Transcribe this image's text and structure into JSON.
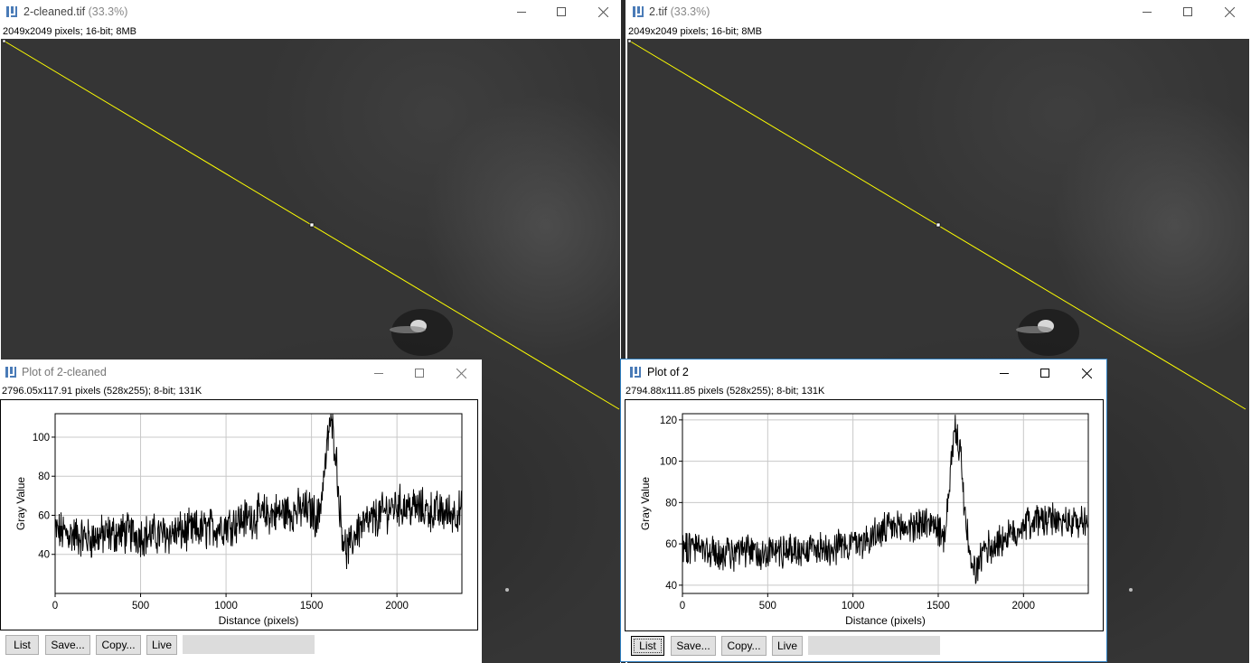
{
  "left_image_window": {
    "title": "2-cleaned.tif",
    "zoom": "(33.3%)",
    "info": "2049x2049 pixels; 16-bit; 8MB"
  },
  "right_image_window": {
    "title": "2.tif",
    "zoom": "(33.3%)",
    "info": "2049x2049 pixels; 16-bit; 8MB"
  },
  "left_plot_window": {
    "title": "Plot of 2-cleaned",
    "info": "2796.05x117.91 pixels (528x255); 8-bit; 131K",
    "buttons": {
      "list": "List",
      "save": "Save...",
      "copy": "Copy...",
      "live": "Live"
    },
    "chart_data": {
      "type": "line",
      "xlabel": "Distance (pixels)",
      "ylabel": "Gray Value",
      "xlim": [
        0,
        2380
      ],
      "ylim": [
        20,
        112
      ],
      "xticks": [
        0,
        500,
        1000,
        1500,
        2000
      ],
      "yticks": [
        40,
        60,
        80,
        100
      ],
      "grid": true,
      "series": [
        {
          "profile": [
            [
              0,
              52
            ],
            [
              100,
              50
            ],
            [
              200,
              48
            ],
            [
              300,
              50
            ],
            [
              400,
              51
            ],
            [
              500,
              50
            ],
            [
              600,
              50
            ],
            [
              700,
              51
            ],
            [
              800,
              52
            ],
            [
              900,
              53
            ],
            [
              1000,
              55
            ],
            [
              1100,
              58
            ],
            [
              1200,
              60
            ],
            [
              1300,
              61
            ],
            [
              1400,
              62
            ],
            [
              1450,
              63
            ],
            [
              1500,
              62
            ],
            [
              1540,
              58
            ],
            [
              1580,
              85
            ],
            [
              1610,
              110
            ],
            [
              1640,
              95
            ],
            [
              1670,
              58
            ],
            [
              1700,
              42
            ],
            [
              1730,
              44
            ],
            [
              1760,
              52
            ],
            [
              1800,
              55
            ],
            [
              1850,
              57
            ],
            [
              1900,
              60
            ],
            [
              1950,
              63
            ],
            [
              2000,
              65
            ],
            [
              2100,
              64
            ],
            [
              2200,
              62
            ],
            [
              2300,
              61
            ],
            [
              2380,
              62
            ]
          ],
          "noise": 9
        }
      ]
    }
  },
  "right_plot_window": {
    "title": "Plot of 2",
    "info": "2794.88x111.85 pixels (528x255); 8-bit; 131K",
    "buttons": {
      "list": "List",
      "save": "Save...",
      "copy": "Copy...",
      "live": "Live"
    },
    "chart_data": {
      "type": "line",
      "xlabel": "Distance (pixels)",
      "ylabel": "Gray Value",
      "xlim": [
        0,
        2380
      ],
      "ylim": [
        36,
        123
      ],
      "xticks": [
        0,
        500,
        1000,
        1500,
        2000
      ],
      "yticks": [
        40,
        60,
        80,
        100,
        120
      ],
      "grid": true,
      "series": [
        {
          "profile": [
            [
              0,
              60
            ],
            [
              100,
              58
            ],
            [
              200,
              55
            ],
            [
              300,
              55
            ],
            [
              400,
              56
            ],
            [
              500,
              56
            ],
            [
              600,
              57
            ],
            [
              700,
              57
            ],
            [
              800,
              58
            ],
            [
              900,
              59
            ],
            [
              1000,
              60
            ],
            [
              1100,
              63
            ],
            [
              1200,
              67
            ],
            [
              1300,
              68
            ],
            [
              1400,
              70
            ],
            [
              1450,
              70
            ],
            [
              1500,
              68
            ],
            [
              1540,
              60
            ],
            [
              1570,
              95
            ],
            [
              1600,
              115
            ],
            [
              1630,
              105
            ],
            [
              1660,
              70
            ],
            [
              1700,
              45
            ],
            [
              1740,
              50
            ],
            [
              1780,
              58
            ],
            [
              1830,
              60
            ],
            [
              1880,
              62
            ],
            [
              1950,
              65
            ],
            [
              2000,
              70
            ],
            [
              2100,
              72
            ],
            [
              2200,
              71
            ],
            [
              2300,
              70
            ],
            [
              2380,
              72
            ]
          ],
          "noise": 7
        }
      ]
    }
  },
  "colors": {
    "selection_line": "#ffff00",
    "plot_line": "#000000",
    "grid": "#c8c8c8"
  }
}
